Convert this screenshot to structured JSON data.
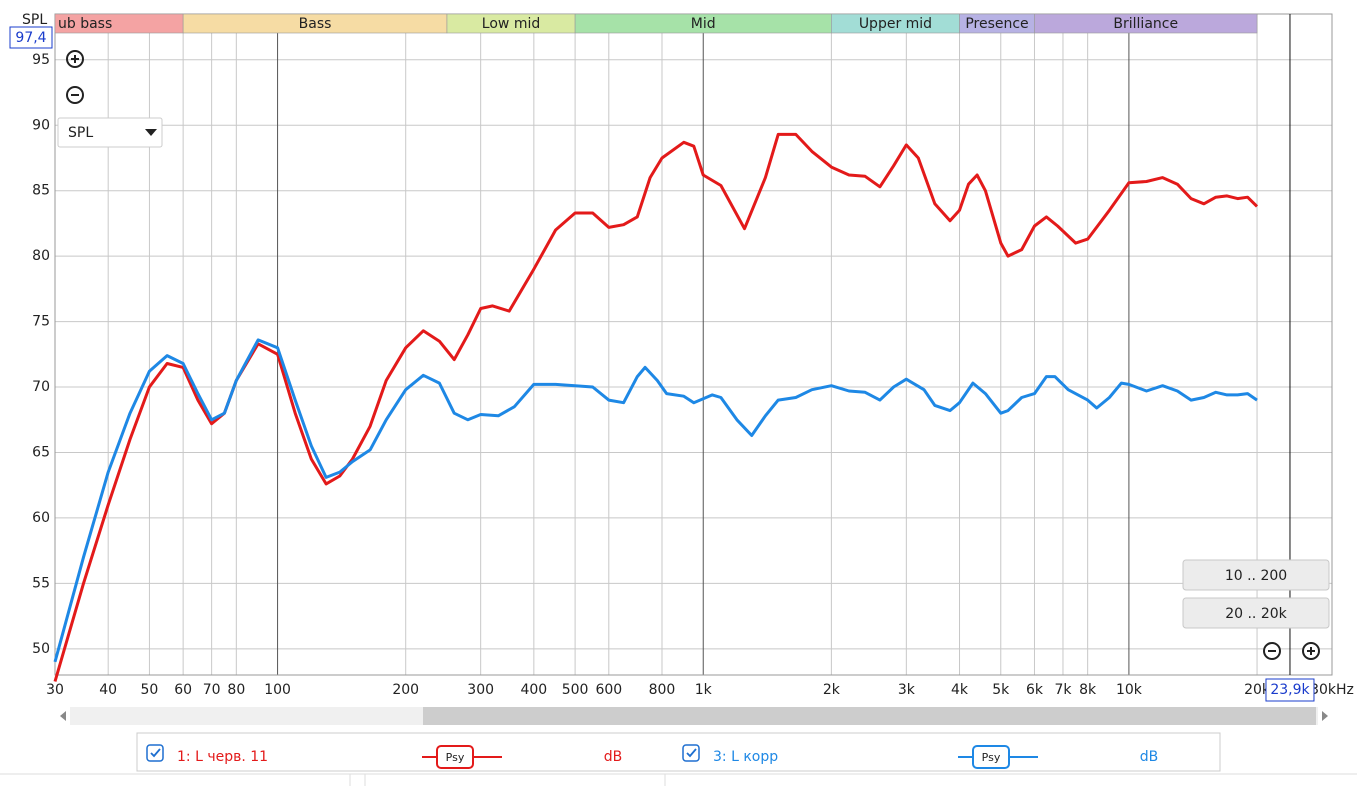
{
  "chart_data": {
    "type": "line",
    "y_label": "SPL",
    "xscale": "log",
    "grid": true,
    "xlim": [
      30,
      30000
    ],
    "ylim": [
      48,
      98.5
    ],
    "xticks": [
      30,
      40,
      50,
      60,
      70,
      80,
      100,
      200,
      300,
      400,
      500,
      600,
      800,
      {
        "value": 1000,
        "label": "1k"
      },
      {
        "value": 2000,
        "label": "2k"
      },
      {
        "value": 3000,
        "label": "3k"
      },
      {
        "value": 4000,
        "label": "4k"
      },
      {
        "value": 5000,
        "label": "5k"
      },
      {
        "value": 6000,
        "label": "6k"
      },
      {
        "value": 7000,
        "label": "7k"
      },
      {
        "value": 8000,
        "label": "8k"
      },
      {
        "value": 10000,
        "label": "10k"
      },
      {
        "value": 20000,
        "label": "20k"
      },
      {
        "value": 30000,
        "label": "30kHz"
      }
    ],
    "yticks": [
      50,
      55,
      60,
      65,
      70,
      75,
      80,
      85,
      90,
      95
    ],
    "bands": [
      {
        "name": "ub bass",
        "color": "#f4a3a3",
        "from": 30,
        "to": 60
      },
      {
        "name": "Bass",
        "color": "#f6dca4",
        "from": 60,
        "to": 250
      },
      {
        "name": "Low mid",
        "color": "#d9eaa2",
        "from": 250,
        "to": 500
      },
      {
        "name": "Mid",
        "color": "#a6e2a8",
        "from": 500,
        "to": 2000
      },
      {
        "name": "Upper mid",
        "color": "#a2ddd6",
        "from": 2000,
        "to": 4000
      },
      {
        "name": "Presence",
        "color": "#b7b2e4",
        "from": 4000,
        "to": 6000
      },
      {
        "name": "Brilliance",
        "color": "#bba8dc",
        "from": 6000,
        "to": 20000
      }
    ],
    "cursor": {
      "x": 23900,
      "x_label": "23,9k",
      "y": 97.4,
      "y_label": "97,4"
    },
    "series": [
      {
        "name": "1: L черв. 11",
        "color": "#e31a1a",
        "badge": "Psy",
        "unit": "dB",
        "x": [
          30,
          35,
          40,
          45,
          50,
          55,
          60,
          65,
          70,
          75,
          80,
          90,
          100,
          110,
          120,
          130,
          140,
          150,
          165,
          180,
          200,
          220,
          240,
          260,
          280,
          300,
          320,
          350,
          400,
          450,
          500,
          550,
          600,
          650,
          700,
          750,
          800,
          900,
          950,
          1000,
          1100,
          1250,
          1400,
          1500,
          1650,
          1800,
          2000,
          2200,
          2400,
          2600,
          2800,
          3000,
          3200,
          3500,
          3800,
          4000,
          4200,
          4400,
          4600,
          5000,
          5200,
          5600,
          6000,
          6400,
          6800,
          7500,
          8000,
          9000,
          10000,
          11000,
          12000,
          13000,
          14000,
          15000,
          16000,
          17000,
          18000,
          19000,
          20000
        ],
        "values": [
          47.5,
          55,
          61,
          66,
          70,
          71.8,
          71.5,
          69,
          67.2,
          68,
          70.5,
          73.3,
          72.5,
          68,
          64.5,
          62.6,
          63.2,
          64.5,
          67,
          70.5,
          73,
          74.3,
          73.5,
          72.1,
          74,
          76,
          76.2,
          75.8,
          79,
          82,
          83.3,
          83.3,
          82.2,
          82.4,
          83,
          86,
          87.5,
          88.7,
          88.4,
          86.2,
          85.4,
          82.1,
          86,
          89.3,
          89.3,
          88,
          86.8,
          86.2,
          86.1,
          85.3,
          86.9,
          88.5,
          87.5,
          84,
          82.7,
          83.5,
          85.5,
          86.2,
          85,
          81,
          80,
          80.5,
          82.3,
          83,
          82.3,
          81,
          81.3,
          83.5,
          85.6,
          85.7,
          86,
          85.5,
          84.4,
          84,
          84.5,
          84.6,
          84.4,
          84.5,
          83.8
        ]
      },
      {
        "name": "3: L корр",
        "color": "#1e88e5",
        "badge": "Psy",
        "unit": "dB",
        "x": [
          30,
          35,
          40,
          45,
          50,
          55,
          60,
          65,
          70,
          75,
          80,
          90,
          100,
          110,
          120,
          130,
          140,
          150,
          165,
          180,
          200,
          220,
          240,
          260,
          280,
          300,
          330,
          360,
          400,
          450,
          500,
          550,
          600,
          650,
          700,
          730,
          780,
          820,
          900,
          950,
          1000,
          1050,
          1100,
          1200,
          1300,
          1400,
          1500,
          1650,
          1800,
          2000,
          2200,
          2400,
          2600,
          2800,
          3000,
          3300,
          3500,
          3800,
          4000,
          4300,
          4600,
          5000,
          5200,
          5600,
          6000,
          6400,
          6700,
          7200,
          8000,
          8400,
          9000,
          9600,
          10000,
          11000,
          12000,
          13000,
          14000,
          15000,
          16000,
          17000,
          18000,
          19000,
          20000
        ],
        "values": [
          49,
          57,
          63.5,
          68,
          71.2,
          72.4,
          71.8,
          69.5,
          67.5,
          68,
          70.5,
          73.6,
          73,
          69,
          65.5,
          63.1,
          63.5,
          64.3,
          65.2,
          67.5,
          69.8,
          70.9,
          70.3,
          68,
          67.5,
          67.9,
          67.8,
          68.5,
          70.2,
          70.2,
          70.1,
          70,
          69,
          68.8,
          70.8,
          71.5,
          70.5,
          69.5,
          69.3,
          68.8,
          69.1,
          69.4,
          69.2,
          67.5,
          66.3,
          67.8,
          69,
          69.2,
          69.8,
          70.1,
          69.7,
          69.6,
          69,
          70,
          70.6,
          69.8,
          68.6,
          68.2,
          68.8,
          70.3,
          69.5,
          68,
          68.2,
          69.2,
          69.5,
          70.8,
          70.8,
          69.8,
          69,
          68.4,
          69.2,
          70.3,
          70.2,
          69.7,
          70.1,
          69.7,
          69,
          69.2,
          69.6,
          69.4,
          69.4,
          69.5,
          69
        ]
      }
    ]
  },
  "ui": {
    "dropdown": "SPL",
    "buttons": [
      "10 .. 200",
      "20 .. 20k"
    ]
  }
}
